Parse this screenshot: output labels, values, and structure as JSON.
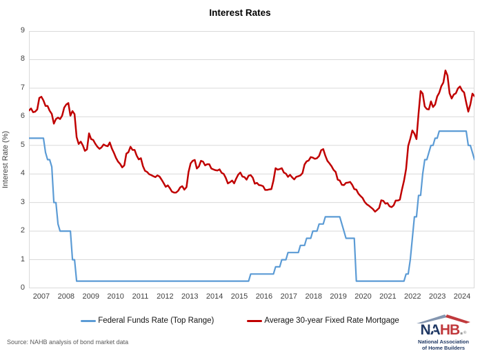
{
  "title": "Interest Rates",
  "source": "Source: NAHB analysis of bond market data",
  "legend": [
    {
      "label": "Federal Funds Rate (Top Range)",
      "color": "#5B9BD5"
    },
    {
      "label": "Average 30-year Fixed Rate Mortgage",
      "color": "#C00000"
    }
  ],
  "logo": {
    "acronym_left": "NA",
    "acronym_right": "HB",
    "period": ".",
    "registered": "®",
    "star": "★",
    "tagline_line1": "National Association",
    "tagline_line2": "of Home Builders",
    "navy": "#1F3864",
    "red": "#C0393C",
    "gray": "#9A9A9A",
    "roof_left_color": "#8496B0",
    "roof_right_color": "#C0393C"
  },
  "chart_data": {
    "type": "line",
    "title": "Interest Rates",
    "xlabel": "",
    "ylabel": "Interest Rate (%)",
    "ylim": [
      0,
      9
    ],
    "y_ticks": [
      0,
      1,
      2,
      3,
      4,
      5,
      6,
      7,
      8,
      9
    ],
    "x_tick_labels": [
      "2007",
      "2008",
      "2009",
      "2010",
      "2011",
      "2012",
      "2013",
      "2014",
      "2015",
      "2016",
      "2017",
      "2018",
      "2019",
      "2020",
      "2021",
      "2022",
      "2023",
      "2024"
    ],
    "x_frequency": "monthly",
    "grid": "horizontal",
    "gridline_color": "#D9D9D9",
    "plot_border_color": "#D9D9D9",
    "legend_position": "bottom",
    "series": [
      {
        "name": "Federal Funds Rate (Top Range)",
        "color": "#5B9BD5",
        "width": 2.2,
        "values": [
          5.25,
          5.25,
          5.25,
          5.25,
          5.25,
          5.25,
          5.25,
          5.25,
          4.75,
          4.5,
          4.5,
          4.25,
          3.0,
          3.0,
          2.25,
          2.0,
          2.0,
          2.0,
          2.0,
          2.0,
          2.0,
          1.0,
          1.0,
          0.25,
          0.25,
          0.25,
          0.25,
          0.25,
          0.25,
          0.25,
          0.25,
          0.25,
          0.25,
          0.25,
          0.25,
          0.25,
          0.25,
          0.25,
          0.25,
          0.25,
          0.25,
          0.25,
          0.25,
          0.25,
          0.25,
          0.25,
          0.25,
          0.25,
          0.25,
          0.25,
          0.25,
          0.25,
          0.25,
          0.25,
          0.25,
          0.25,
          0.25,
          0.25,
          0.25,
          0.25,
          0.25,
          0.25,
          0.25,
          0.25,
          0.25,
          0.25,
          0.25,
          0.25,
          0.25,
          0.25,
          0.25,
          0.25,
          0.25,
          0.25,
          0.25,
          0.25,
          0.25,
          0.25,
          0.25,
          0.25,
          0.25,
          0.25,
          0.25,
          0.25,
          0.25,
          0.25,
          0.25,
          0.25,
          0.25,
          0.25,
          0.25,
          0.25,
          0.25,
          0.25,
          0.25,
          0.25,
          0.25,
          0.25,
          0.25,
          0.25,
          0.25,
          0.25,
          0.25,
          0.25,
          0.25,
          0.25,
          0.25,
          0.5,
          0.5,
          0.5,
          0.5,
          0.5,
          0.5,
          0.5,
          0.5,
          0.5,
          0.5,
          0.5,
          0.5,
          0.75,
          0.75,
          0.75,
          1.0,
          1.0,
          1.0,
          1.25,
          1.25,
          1.25,
          1.25,
          1.25,
          1.25,
          1.5,
          1.5,
          1.5,
          1.75,
          1.75,
          1.75,
          2.0,
          2.0,
          2.0,
          2.25,
          2.25,
          2.25,
          2.5,
          2.5,
          2.5,
          2.5,
          2.5,
          2.5,
          2.5,
          2.5,
          2.25,
          2.0,
          1.75,
          1.75,
          1.75,
          1.75,
          1.75,
          0.25,
          0.25,
          0.25,
          0.25,
          0.25,
          0.25,
          0.25,
          0.25,
          0.25,
          0.25,
          0.25,
          0.25,
          0.25,
          0.25,
          0.25,
          0.25,
          0.25,
          0.25,
          0.25,
          0.25,
          0.25,
          0.25,
          0.25,
          0.25,
          0.5,
          0.5,
          1.0,
          1.75,
          2.5,
          2.5,
          3.25,
          3.25,
          4.0,
          4.5,
          4.5,
          4.75,
          5.0,
          5.0,
          5.25,
          5.25,
          5.5,
          5.5,
          5.5,
          5.5,
          5.5,
          5.5,
          5.5,
          5.5,
          5.5,
          5.5,
          5.5,
          5.5,
          5.5,
          5.5,
          5.0,
          5.0,
          4.75,
          4.5
        ]
      },
      {
        "name": "Average 30-year Fixed Rate Mortgage",
        "color": "#C00000",
        "width": 2.5,
        "values": [
          6.22,
          6.29,
          6.16,
          6.18,
          6.26,
          6.66,
          6.7,
          6.57,
          6.38,
          6.38,
          6.21,
          6.1,
          5.76,
          5.92,
          5.97,
          5.92,
          6.04,
          6.32,
          6.43,
          6.48,
          6.04,
          6.2,
          6.09,
          5.29,
          5.05,
          5.13,
          5.0,
          4.81,
          4.86,
          5.42,
          5.22,
          5.19,
          5.06,
          4.95,
          4.88,
          4.93,
          5.03,
          4.99,
          4.97,
          5.1,
          4.89,
          4.74,
          4.56,
          4.43,
          4.35,
          4.23,
          4.3,
          4.71,
          4.76,
          4.95,
          4.84,
          4.84,
          4.64,
          4.51,
          4.55,
          4.27,
          4.11,
          4.07,
          3.99,
          3.96,
          3.92,
          3.89,
          3.95,
          3.91,
          3.8,
          3.68,
          3.55,
          3.6,
          3.5,
          3.38,
          3.35,
          3.35,
          3.41,
          3.53,
          3.57,
          3.45,
          3.54,
          4.07,
          4.37,
          4.46,
          4.49,
          4.19,
          4.26,
          4.46,
          4.43,
          4.3,
          4.34,
          4.34,
          4.19,
          4.16,
          4.13,
          4.12,
          4.16,
          4.04,
          4.0,
          3.86,
          3.67,
          3.71,
          3.77,
          3.67,
          3.84,
          3.98,
          4.05,
          3.91,
          3.89,
          3.8,
          3.94,
          3.96,
          3.87,
          3.66,
          3.69,
          3.61,
          3.6,
          3.57,
          3.44,
          3.44,
          3.46,
          3.47,
          3.77,
          4.2,
          4.15,
          4.17,
          4.2,
          4.05,
          4.01,
          3.9,
          3.97,
          3.88,
          3.81,
          3.9,
          3.92,
          3.95,
          4.03,
          4.33,
          4.44,
          4.47,
          4.59,
          4.57,
          4.53,
          4.55,
          4.63,
          4.83,
          4.87,
          4.64,
          4.46,
          4.37,
          4.27,
          4.14,
          4.07,
          3.8,
          3.77,
          3.62,
          3.61,
          3.69,
          3.7,
          3.72,
          3.62,
          3.47,
          3.45,
          3.31,
          3.23,
          3.16,
          3.02,
          2.94,
          2.89,
          2.83,
          2.77,
          2.68,
          2.74,
          2.81,
          3.08,
          3.06,
          2.96,
          2.98,
          2.87,
          2.84,
          2.9,
          3.07,
          3.07,
          3.1,
          3.45,
          3.76,
          4.17,
          4.98,
          5.23,
          5.52,
          5.41,
          5.22,
          6.11,
          6.9,
          6.81,
          6.36,
          6.27,
          6.26,
          6.54,
          6.34,
          6.43,
          6.71,
          6.84,
          7.07,
          7.2,
          7.62,
          7.44,
          6.82,
          6.64,
          6.78,
          6.82,
          6.99,
          7.06,
          6.92,
          6.85,
          6.5,
          6.18,
          6.43,
          6.81,
          6.72
        ]
      }
    ]
  }
}
